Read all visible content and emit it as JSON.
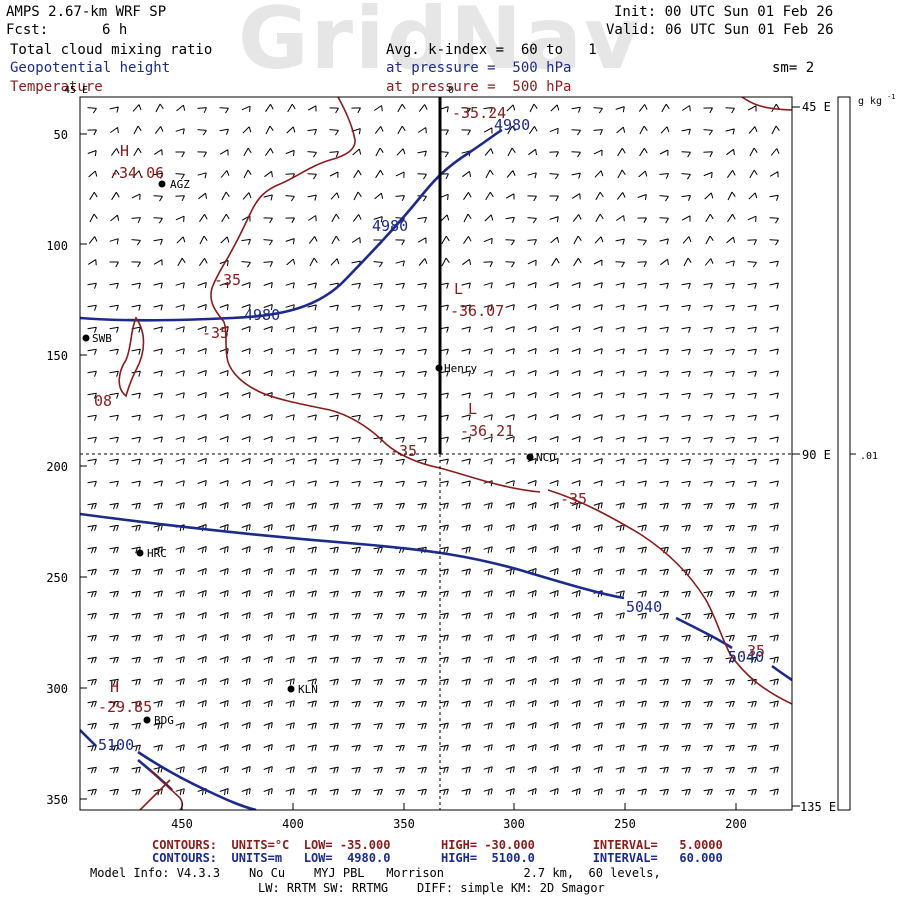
{
  "header": {
    "model": "AMPS 2.67-km WRF SP",
    "forecast_label": "Fcst:",
    "forecast_value": "6 h",
    "init": "Init: 00 UTC Sun 01 Feb 26",
    "valid": "Valid: 06 UTC Sun 01 Feb 26",
    "field_1": "Total cloud mixing ratio",
    "field_2": "Geopotential height",
    "field_3": "Temperature",
    "field_1_level": "Avg. k-index =  60 to   1",
    "field_2_level": "at pressure =  500 hPa",
    "field_3_level": "at pressure =  500 hPa",
    "smoothing": "sm= 2",
    "watermark": "GridNav"
  },
  "colors": {
    "height": "#1c2a8a",
    "temperature": "#8a1c1c",
    "wind": "#000000"
  },
  "map": {
    "y_ticks": [
      "50",
      "100",
      "150",
      "200",
      "250",
      "300",
      "350"
    ],
    "x_ticks": [
      "450",
      "400",
      "350",
      "300",
      "250",
      "200"
    ],
    "lon_labels": [
      "45 E",
      "90 E",
      "135 E"
    ],
    "lon_top_label": "0",
    "lon_left_label": "45 E",
    "stations": [
      {
        "name": "AGZ"
      },
      {
        "name": "SWB"
      },
      {
        "name": "Henry"
      },
      {
        "name": "NCO"
      },
      {
        "name": "HRC"
      },
      {
        "name": "KLN"
      },
      {
        "name": "BDG"
      }
    ],
    "height_labels": [
      "4980",
      "4980",
      "4980",
      "5040",
      "5040",
      "5100"
    ],
    "temp_labels": [
      "-35.24",
      "-35",
      "-35",
      "-35",
      "-35",
      "-35",
      "08"
    ],
    "pressure_marks": [
      {
        "letter": "H",
        "value": "-34.06"
      },
      {
        "letter": "L",
        "value": "-36.07"
      },
      {
        "letter": "L",
        "value": "-36.21"
      },
      {
        "letter": "H",
        "value": "-29.85"
      }
    ]
  },
  "colorbar": {
    "units": "g kg",
    "units_exp": "-1",
    "tick": ".01"
  },
  "footer": {
    "temp_contours": "CONTOURS:  UNITS=°C  LOW= -35.000       HIGH= -30.000        INTERVAL=   5.0000",
    "height_contours": "CONTOURS:  UNITS=m   LOW=  4980.0       HIGH=  5100.0        INTERVAL=   60.000",
    "model_info": "Model Info: V4.3.3    No Cu    MYJ PBL   Morrison           2.7 km,  60 levels,",
    "physics": "LW: RRTM SW: RRTMG    DIFF: simple KM: 2D Smagor"
  }
}
